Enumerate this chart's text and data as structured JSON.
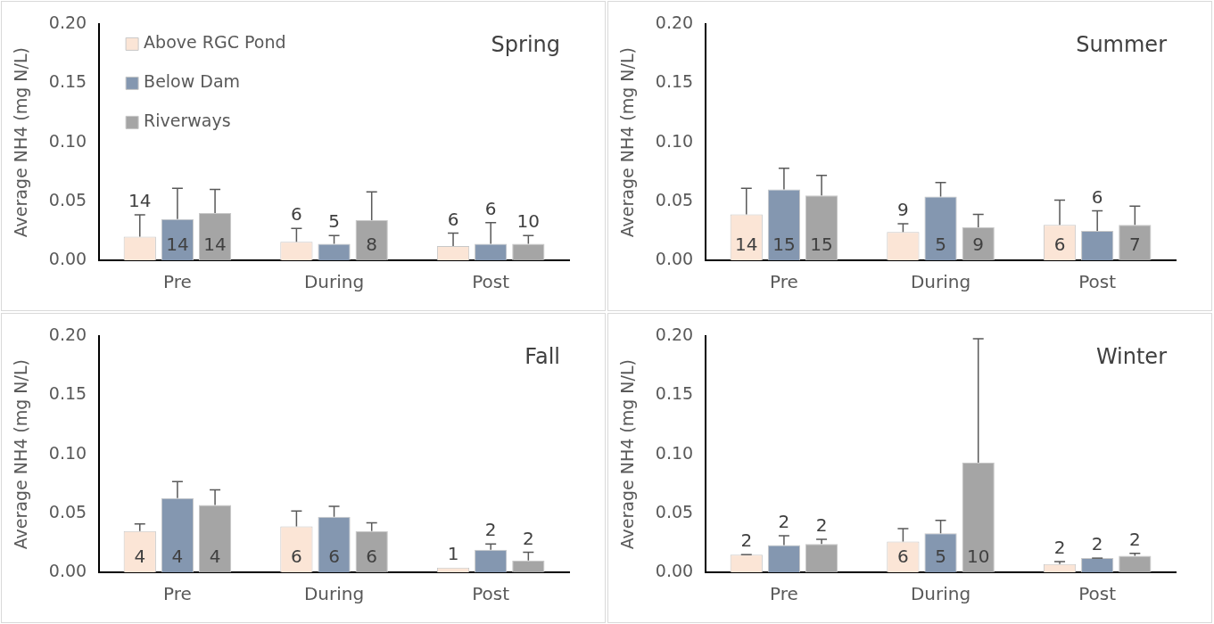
{
  "chart_data": [
    {
      "type": "bar",
      "title": "Spring",
      "ylabel": "Average NH4 (mg N/L)",
      "categories": [
        "Pre",
        "During",
        "Post"
      ],
      "ylim": [
        0,
        0.2
      ],
      "yticks": [
        {
          "value": 0,
          "label": "0.00"
        },
        {
          "value": 0.05,
          "label": "0.05"
        },
        {
          "value": 0.1,
          "label": "0.10"
        },
        {
          "value": 0.15,
          "label": "0.15"
        },
        {
          "value": 0.2,
          "label": "0.20"
        }
      ],
      "legend": "top left",
      "annotations": [
        "14",
        "14",
        "14",
        "6",
        "5",
        "8",
        "6",
        "6",
        "10"
      ],
      "series": [
        {
          "name": "Above RGC Pond",
          "color": "#fbe5d6",
          "values": [
            0.02,
            0.0156,
            0.012
          ],
          "errors": [
            [
              0.02,
              0.0385
            ],
            [
              0.0156,
              0.027
            ],
            [
              0.012,
              0.023
            ]
          ]
        },
        {
          "name": "Below Dam",
          "color": "#8497b0",
          "values": [
            0.035,
            0.014,
            0.014
          ],
          "errors": [
            [
              0.035,
              0.061
            ],
            [
              0.014,
              0.021
            ],
            [
              0.014,
              0.032
            ]
          ]
        },
        {
          "name": "Riverways",
          "color": "#a5a5a5",
          "values": [
            0.04,
            0.034,
            0.014
          ],
          "errors": [
            [
              0.04,
              0.06
            ],
            [
              0.034,
              0.058
            ],
            [
              0.014,
              0.021
            ]
          ]
        }
      ]
    },
    {
      "type": "bar",
      "title": "Summer",
      "ylabel": "Average NH4 (mg N/L)",
      "categories": [
        "Pre",
        "During",
        "Post"
      ],
      "ylim": [
        0,
        0.2
      ],
      "yticks": [
        {
          "value": 0,
          "label": "0.00"
        },
        {
          "value": 0.05,
          "label": "0.05"
        },
        {
          "value": 0.1,
          "label": "0.10"
        },
        {
          "value": 0.15,
          "label": "0.15"
        },
        {
          "value": 0.2,
          "label": "0.20"
        }
      ],
      "annotations": [
        "14",
        "15",
        "15",
        "9",
        "5",
        "9",
        "6",
        "6",
        "7"
      ],
      "series": [
        {
          "color": "#fbe5d6",
          "values": [
            0.039,
            0.024,
            0.03
          ],
          "errors": [
            [
              0.039,
              0.061
            ],
            [
              0.024,
              0.031
            ],
            [
              0.03,
              0.051
            ]
          ]
        },
        {
          "color": "#8497b0",
          "values": [
            0.06,
            0.054,
            0.025
          ],
          "errors": [
            [
              0.06,
              0.078
            ],
            [
              0.054,
              0.066
            ],
            [
              0.025,
              0.042
            ]
          ]
        },
        {
          "color": "#a5a5a5",
          "values": [
            0.055,
            0.028,
            0.03
          ],
          "errors": [
            [
              0.055,
              0.072
            ],
            [
              0.028,
              0.039
            ],
            [
              0.03,
              0.046
            ]
          ]
        }
      ]
    },
    {
      "type": "bar",
      "title": "Fall",
      "ylabel": "Average NH4 (mg N/L)",
      "categories": [
        "Pre",
        "During",
        "Post"
      ],
      "ylim": [
        0,
        0.2
      ],
      "yticks": [
        {
          "value": 0,
          "label": "0.00"
        },
        {
          "value": 0.05,
          "label": "0.05"
        },
        {
          "value": 0.1,
          "label": "0.10"
        },
        {
          "value": 0.15,
          "label": "0.15"
        },
        {
          "value": 0.2,
          "label": "0.20"
        }
      ],
      "annotations": [
        "4",
        "4",
        "4",
        "6",
        "6",
        "6",
        "1",
        "2",
        "2"
      ],
      "series": [
        {
          "color": "#fbe5d6",
          "values": [
            0.035,
            0.039,
            0.004
          ],
          "errors": [
            [
              0.035,
              0.041
            ],
            [
              0.039,
              0.052
            ],
            null
          ]
        },
        {
          "color": "#8497b0",
          "values": [
            0.063,
            0.047,
            0.019
          ],
          "errors": [
            [
              0.063,
              0.077
            ],
            [
              0.047,
              0.056
            ],
            [
              0.019,
              0.024
            ]
          ]
        },
        {
          "color": "#a5a5a5",
          "values": [
            0.057,
            0.035,
            0.01
          ],
          "errors": [
            [
              0.057,
              0.07
            ],
            [
              0.035,
              0.042
            ],
            [
              0.01,
              0.017
            ]
          ]
        }
      ]
    },
    {
      "type": "bar",
      "title": "Winter",
      "ylabel": "Average NH4 (mg N/L)",
      "categories": [
        "Pre",
        "During",
        "Post"
      ],
      "ylim": [
        0,
        0.2
      ],
      "yticks": [
        {
          "value": 0,
          "label": "0.00"
        },
        {
          "value": 0.05,
          "label": "0.05"
        },
        {
          "value": 0.1,
          "label": "0.10"
        },
        {
          "value": 0.15,
          "label": "0.15"
        },
        {
          "value": 0.2,
          "label": "0.20"
        }
      ],
      "annotations": [
        "2",
        "2",
        "2",
        "6",
        "5",
        "10",
        "2",
        "2",
        "2"
      ],
      "series": [
        {
          "color": "#fbe5d6",
          "values": [
            0.015,
            0.026,
            0.007
          ],
          "errors": [
            [
              0.015,
              0.015
            ],
            [
              0.026,
              0.037
            ],
            [
              0.007,
              0.009
            ]
          ]
        },
        {
          "color": "#8497b0",
          "values": [
            0.023,
            0.033,
            0.012
          ],
          "errors": [
            [
              0.023,
              0.031
            ],
            [
              0.033,
              0.044
            ],
            [
              0.012,
              0.012
            ]
          ]
        },
        {
          "color": "#a5a5a5",
          "values": [
            0.024,
            0.093,
            0.014
          ],
          "errors": [
            [
              0.024,
              0.028
            ],
            [
              0.093,
              0.198
            ],
            [
              0.014,
              0.016
            ]
          ]
        }
      ]
    }
  ]
}
